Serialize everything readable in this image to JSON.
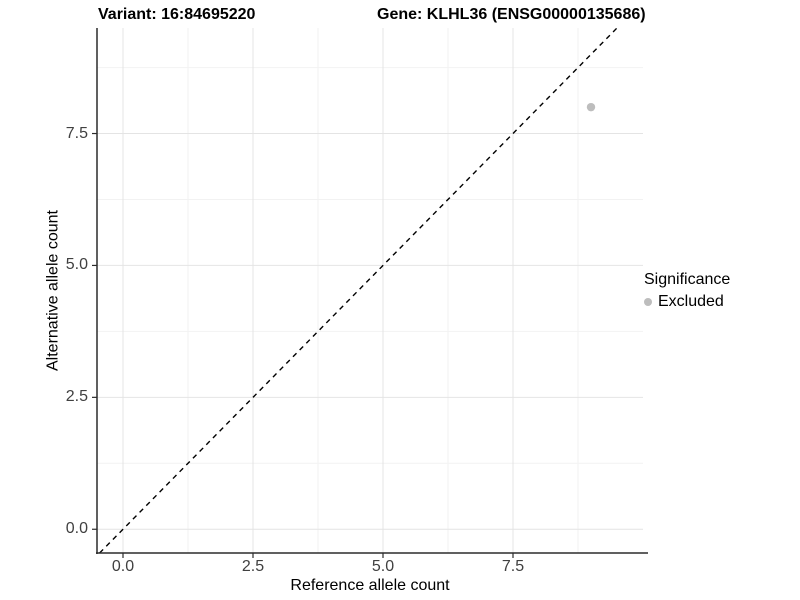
{
  "chart_data": {
    "type": "scatter",
    "titles": {
      "variant": "Variant: 16:84695220",
      "gene": "Gene: KLHL36 (ENSG00000135686)"
    },
    "xlabel": "Reference allele count",
    "ylabel": "Alternative allele count",
    "xlim": [
      -0.5,
      10.0
    ],
    "ylim": [
      -0.45,
      9.5
    ],
    "xticks": [
      0,
      2.5,
      5,
      7.5
    ],
    "xtick_labels": [
      "0.0",
      "2.5",
      "5.0",
      "7.5"
    ],
    "yticks": [
      0,
      2.5,
      5,
      7.5
    ],
    "ytick_labels": [
      "0.0",
      "2.5",
      "5.0",
      "7.5"
    ],
    "xminor": [
      1.25,
      3.75,
      6.25,
      8.75
    ],
    "yminor": [
      1.25,
      3.75,
      6.25,
      8.75
    ],
    "grid": "major+minor",
    "identity_line": {
      "style": "dashed",
      "slope": 1,
      "intercept": 0,
      "color": "#000000"
    },
    "series": [
      {
        "name": "Excluded",
        "color": "#bdbdbd",
        "points": [
          {
            "x": 9,
            "y": 8,
            "significance": "Excluded"
          }
        ]
      }
    ],
    "legend": {
      "position": "right",
      "title": "Significance",
      "items": [
        {
          "label": "Excluded",
          "color": "#bdbdbd"
        }
      ]
    }
  }
}
